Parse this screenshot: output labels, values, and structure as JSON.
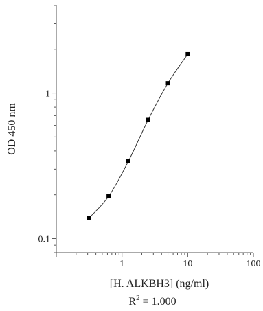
{
  "chart_data": {
    "type": "line",
    "title": "",
    "xlabel": "[H. ALKBH3] (ng/ml)",
    "ylabel": "OD 450 nm",
    "annotation": {
      "prefix": "R",
      "superscript": "2",
      "suffix": " = 1.000"
    },
    "x_scale": "log",
    "y_scale": "log",
    "xlim": [
      0.1,
      100
    ],
    "ylim": [
      0.08,
      4.0
    ],
    "x_ticks": [
      {
        "value": 1,
        "label": "1"
      },
      {
        "value": 10,
        "label": "10"
      },
      {
        "value": 100,
        "label": "100"
      }
    ],
    "y_ticks": [
      {
        "value": 0.1,
        "label": "0.1"
      },
      {
        "value": 1,
        "label": "1"
      }
    ],
    "grid": false,
    "legend": "none",
    "series": [
      {
        "marker": "square",
        "color": "#000000",
        "x": [
          0.3125,
          0.625,
          1.25,
          2.5,
          5,
          10
        ],
        "y": [
          0.138,
          0.195,
          0.34,
          0.655,
          1.17,
          1.85
        ]
      }
    ]
  }
}
